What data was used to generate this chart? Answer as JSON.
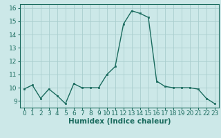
{
  "x": [
    0,
    1,
    2,
    3,
    4,
    5,
    6,
    7,
    8,
    9,
    10,
    11,
    12,
    13,
    14,
    15,
    16,
    17,
    18,
    19,
    20,
    21,
    22,
    23
  ],
  "y": [
    9.9,
    10.2,
    9.2,
    9.9,
    9.4,
    8.8,
    10.3,
    10.0,
    10.0,
    10.0,
    11.0,
    11.6,
    14.8,
    15.8,
    15.6,
    15.3,
    10.5,
    10.1,
    10.0,
    10.0,
    10.0,
    9.9,
    9.2,
    8.8
  ],
  "line_color": "#1a6b5e",
  "marker_color": "#1a6b5e",
  "bg_color": "#cce8e8",
  "grid_color": "#aacece",
  "xlabel": "Humidex (Indice chaleur)",
  "xlim": [
    -0.5,
    23.5
  ],
  "ylim": [
    8.5,
    16.3
  ],
  "yticks": [
    9,
    10,
    11,
    12,
    13,
    14,
    15,
    16
  ],
  "xticks": [
    0,
    1,
    2,
    3,
    4,
    5,
    6,
    7,
    8,
    9,
    10,
    11,
    12,
    13,
    14,
    15,
    16,
    17,
    18,
    19,
    20,
    21,
    22,
    23
  ],
  "label_fontsize": 7.5,
  "tick_fontsize": 6.5
}
